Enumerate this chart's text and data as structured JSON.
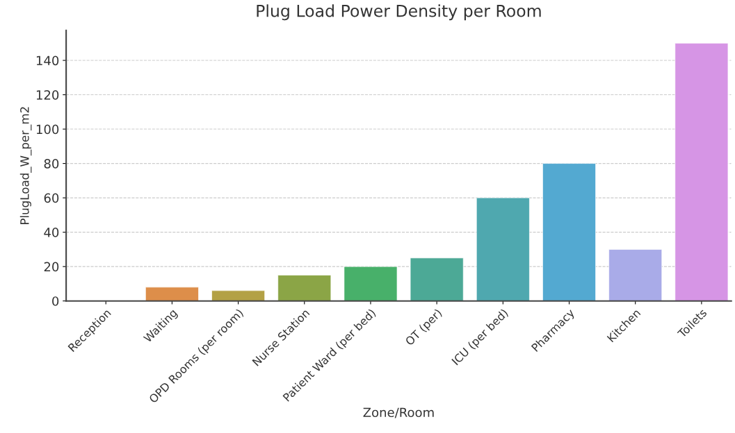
{
  "chart_data": {
    "type": "bar",
    "title": "Plug Load Power Density per Room",
    "xlabel": "Zone/Room",
    "ylabel": "PlugLoad_W_per_m2",
    "categories": [
      "Reception",
      "Waiting",
      "OPD Rooms (per room)",
      "Nurse Station",
      "Patient Ward (per bed)",
      "OT (per)",
      "ICU (per bed)",
      "Pharmacy",
      "Kitchen",
      "Toilets"
    ],
    "values": [
      null,
      8,
      6,
      15,
      20,
      25,
      60,
      80,
      30,
      150
    ],
    "colors": [
      null,
      "#dd8e4a",
      "#b3a145",
      "#8ba546",
      "#48b06a",
      "#4ca996",
      "#4fa8af",
      "#53a9d1",
      "#a9abe8",
      "#d695e5"
    ],
    "ylim": [
      0,
      157.5
    ],
    "yticks": [
      0,
      20,
      40,
      60,
      80,
      100,
      120,
      140
    ],
    "grid": "y",
    "legend": false
  }
}
